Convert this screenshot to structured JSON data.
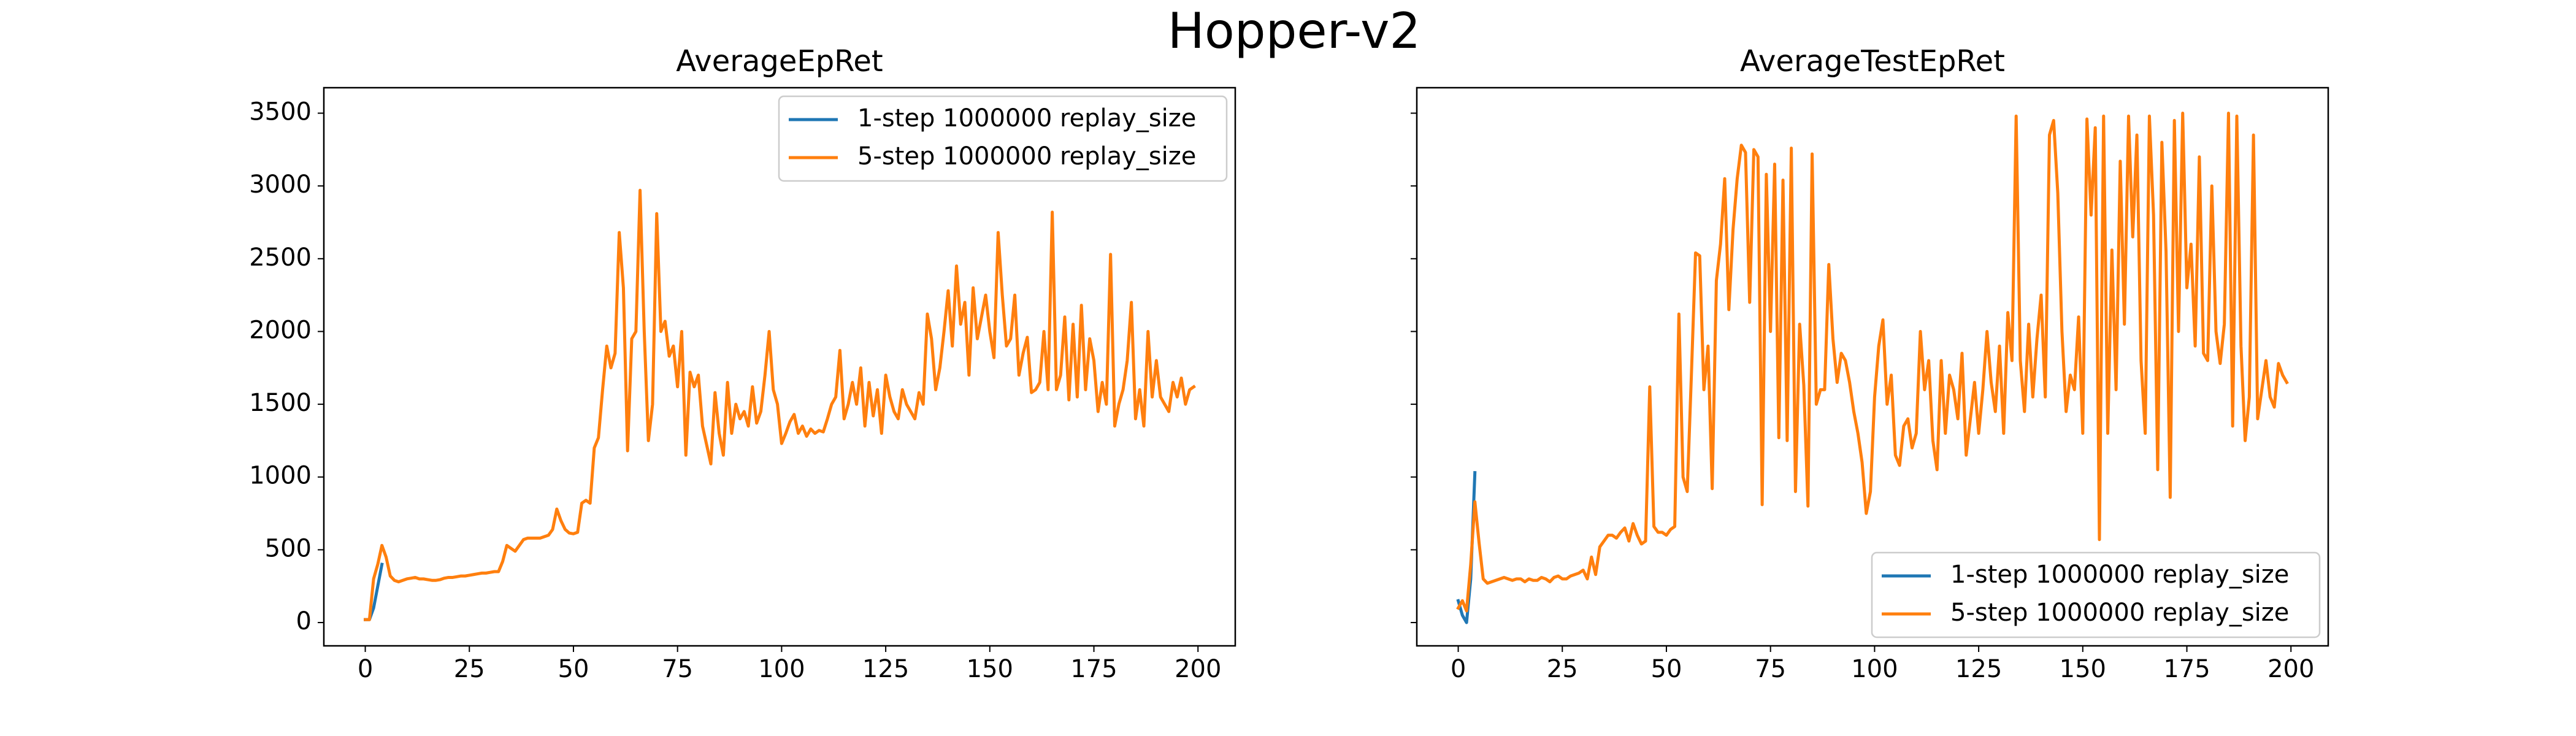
{
  "title": "Hopper-v2",
  "chart_data": [
    {
      "type": "line",
      "title": "AverageEpRet",
      "xlim": [
        -9.95,
        208.95
      ],
      "xticks": [
        0,
        25,
        50,
        75,
        100,
        125,
        150,
        175,
        200
      ],
      "ylim": [
        -160,
        3675
      ],
      "yticks": [
        0,
        500,
        1000,
        1500,
        2000,
        2500,
        3000,
        3500
      ],
      "legend": "upper right",
      "series": [
        {
          "name": "1-step 1000000 replay_size",
          "color": "#1f77b4",
          "x": [
            0,
            1,
            2,
            3,
            4
          ],
          "values": [
            20,
            20,
            100,
            250,
            400
          ]
        },
        {
          "name": "5-step 1000000 replay_size",
          "color": "#ff7f0e",
          "x": [
            0,
            1,
            2,
            3,
            4,
            5,
            6,
            7,
            8,
            9,
            10,
            11,
            12,
            13,
            14,
            15,
            16,
            17,
            18,
            19,
            20,
            21,
            22,
            23,
            24,
            25,
            26,
            27,
            28,
            29,
            30,
            31,
            32,
            33,
            34,
            35,
            36,
            37,
            38,
            39,
            40,
            41,
            42,
            43,
            44,
            45,
            46,
            47,
            48,
            49,
            50,
            51,
            52,
            53,
            54,
            55,
            56,
            57,
            58,
            59,
            60,
            61,
            62,
            63,
            64,
            65,
            66,
            67,
            68,
            69,
            70,
            71,
            72,
            73,
            74,
            75,
            76,
            77,
            78,
            79,
            80,
            81,
            82,
            83,
            84,
            85,
            86,
            87,
            88,
            89,
            90,
            91,
            92,
            93,
            94,
            95,
            96,
            97,
            98,
            99,
            100,
            101,
            102,
            103,
            104,
            105,
            106,
            107,
            108,
            109,
            110,
            111,
            112,
            113,
            114,
            115,
            116,
            117,
            118,
            119,
            120,
            121,
            122,
            123,
            124,
            125,
            126,
            127,
            128,
            129,
            130,
            131,
            132,
            133,
            134,
            135,
            136,
            137,
            138,
            139,
            140,
            141,
            142,
            143,
            144,
            145,
            146,
            147,
            148,
            149,
            150,
            151,
            152,
            153,
            154,
            155,
            156,
            157,
            158,
            159,
            160,
            161,
            162,
            163,
            164,
            165,
            166,
            167,
            168,
            169,
            170,
            171,
            172,
            173,
            174,
            175,
            176,
            177,
            178,
            179,
            180,
            181,
            182,
            183,
            184,
            185,
            186,
            187,
            188,
            189,
            190,
            191,
            192,
            193,
            194,
            195,
            196,
            197,
            198,
            199
          ],
          "values": [
            20,
            20,
            300,
            400,
            530,
            450,
            320,
            290,
            280,
            290,
            300,
            305,
            310,
            300,
            300,
            295,
            290,
            290,
            295,
            305,
            310,
            310,
            315,
            320,
            320,
            325,
            330,
            335,
            340,
            340,
            345,
            350,
            350,
            420,
            530,
            510,
            490,
            530,
            570,
            580,
            580,
            580,
            580,
            590,
            600,
            640,
            780,
            700,
            640,
            615,
            610,
            620,
            820,
            840,
            820,
            1200,
            1270,
            1600,
            1900,
            1750,
            1850,
            2680,
            2300,
            1180,
            1950,
            2000,
            2970,
            2000,
            1250,
            1500,
            2810,
            2000,
            2070,
            1830,
            1900,
            1620,
            2000,
            1150,
            1720,
            1620,
            1700,
            1350,
            1220,
            1090,
            1580,
            1300,
            1150,
            1650,
            1300,
            1500,
            1400,
            1450,
            1350,
            1620,
            1370,
            1450,
            1700,
            2000,
            1600,
            1500,
            1230,
            1300,
            1380,
            1430,
            1300,
            1350,
            1280,
            1330,
            1300,
            1320,
            1310,
            1400,
            1500,
            1550,
            1870,
            1400,
            1500,
            1650,
            1500,
            1750,
            1350,
            1650,
            1420,
            1600,
            1300,
            1700,
            1550,
            1450,
            1400,
            1600,
            1500,
            1450,
            1400,
            1580,
            1500,
            2120,
            1950,
            1600,
            1750,
            2000,
            2280,
            1900,
            2450,
            2050,
            2200,
            1700,
            2300,
            1950,
            2100,
            2250,
            2000,
            1820,
            2680,
            2250,
            1900,
            1950,
            2250,
            1700,
            1850,
            1960,
            1580,
            1600,
            1650,
            2000,
            1600,
            2820,
            1600,
            1700,
            2100,
            1530,
            2050,
            1550,
            2180,
            1600,
            1950,
            1800,
            1450,
            1650,
            1500,
            2530,
            1350,
            1500,
            1600,
            1800,
            2200,
            1400,
            1600,
            1350,
            2000,
            1550,
            1800,
            1550,
            1500,
            1450,
            1650,
            1550,
            1680,
            1500,
            1600,
            1620
          ]
        }
      ]
    },
    {
      "type": "line",
      "title": "AverageTestEpRet",
      "xlim": [
        -9.95,
        208.95
      ],
      "xticks": [
        0,
        25,
        50,
        75,
        100,
        125,
        150,
        175,
        200
      ],
      "ylim": [
        -160,
        3675
      ],
      "yticks": [
        0,
        500,
        1000,
        1500,
        2000,
        2500,
        3000,
        3500
      ],
      "sharey": true,
      "legend": "lower right",
      "series": [
        {
          "name": "1-step 1000000 replay_size",
          "color": "#1f77b4",
          "x": [
            0,
            1,
            2,
            3,
            4
          ],
          "values": [
            150,
            50,
            0,
            300,
            1030
          ]
        },
        {
          "name": "5-step 1000000 replay_size",
          "color": "#ff7f0e",
          "x": [
            0,
            1,
            2,
            3,
            4,
            5,
            6,
            7,
            8,
            9,
            10,
            11,
            12,
            13,
            14,
            15,
            16,
            17,
            18,
            19,
            20,
            21,
            22,
            23,
            24,
            25,
            26,
            27,
            28,
            29,
            30,
            31,
            32,
            33,
            34,
            35,
            36,
            37,
            38,
            39,
            40,
            41,
            42,
            43,
            44,
            45,
            46,
            47,
            48,
            49,
            50,
            51,
            52,
            53,
            54,
            55,
            56,
            57,
            58,
            59,
            60,
            61,
            62,
            63,
            64,
            65,
            66,
            67,
            68,
            69,
            70,
            71,
            72,
            73,
            74,
            75,
            76,
            77,
            78,
            79,
            80,
            81,
            82,
            83,
            84,
            85,
            86,
            87,
            88,
            89,
            90,
            91,
            92,
            93,
            94,
            95,
            96,
            97,
            98,
            99,
            100,
            101,
            102,
            103,
            104,
            105,
            106,
            107,
            108,
            109,
            110,
            111,
            112,
            113,
            114,
            115,
            116,
            117,
            118,
            119,
            120,
            121,
            122,
            123,
            124,
            125,
            126,
            127,
            128,
            129,
            130,
            131,
            132,
            133,
            134,
            135,
            136,
            137,
            138,
            139,
            140,
            141,
            142,
            143,
            144,
            145,
            146,
            147,
            148,
            149,
            150,
            151,
            152,
            153,
            154,
            155,
            156,
            157,
            158,
            159,
            160,
            161,
            162,
            163,
            164,
            165,
            166,
            167,
            168,
            169,
            170,
            171,
            172,
            173,
            174,
            175,
            176,
            177,
            178,
            179,
            180,
            181,
            182,
            183,
            184,
            185,
            186,
            187,
            188,
            189,
            190,
            191,
            192,
            193,
            194,
            195,
            196,
            197,
            198,
            199
          ],
          "values": [
            100,
            150,
            80,
            400,
            830,
            550,
            300,
            270,
            280,
            290,
            300,
            310,
            300,
            290,
            300,
            300,
            280,
            300,
            290,
            290,
            310,
            300,
            280,
            310,
            320,
            300,
            300,
            320,
            330,
            340,
            360,
            300,
            450,
            330,
            520,
            560,
            600,
            600,
            580,
            620,
            650,
            560,
            680,
            600,
            540,
            560,
            1620,
            660,
            620,
            620,
            600,
            640,
            660,
            2120,
            1000,
            900,
            1700,
            2540,
            2520,
            1600,
            1900,
            920,
            2350,
            2600,
            3050,
            2150,
            2700,
            3050,
            3280,
            3230,
            2200,
            3250,
            3200,
            810,
            3080,
            2000,
            3150,
            1270,
            3040,
            1250,
            3260,
            900,
            2050,
            1630,
            800,
            3220,
            1500,
            1600,
            1600,
            2460,
            1950,
            1650,
            1850,
            1800,
            1650,
            1450,
            1300,
            1100,
            750,
            900,
            1550,
            1900,
            2080,
            1500,
            1700,
            1150,
            1080,
            1350,
            1400,
            1200,
            1300,
            2000,
            1600,
            1800,
            1250,
            1050,
            1800,
            1300,
            1700,
            1600,
            1400,
            1850,
            1150,
            1400,
            1650,
            1300,
            1600,
            2000,
            1650,
            1450,
            1900,
            1300,
            2130,
            1800,
            3480,
            1800,
            1450,
            2050,
            1550,
            1950,
            2250,
            1550,
            3350,
            3450,
            2950,
            2000,
            1450,
            1700,
            1600,
            2100,
            1300,
            3460,
            2800,
            3400,
            570,
            3480,
            1300,
            2560,
            1600,
            3170,
            2050,
            3480,
            2650,
            3350,
            1800,
            1300,
            3480,
            2800,
            1050,
            3300,
            2550,
            860,
            3450,
            2000,
            3500,
            2300,
            2600,
            1900,
            3200,
            1850,
            1800,
            3000,
            2000,
            1780,
            2050,
            3500,
            1350,
            3480,
            1900,
            1250,
            1550,
            3350,
            1400,
            1600,
            1800,
            1550,
            1480,
            1780,
            1700,
            1650
          ]
        }
      ]
    }
  ]
}
